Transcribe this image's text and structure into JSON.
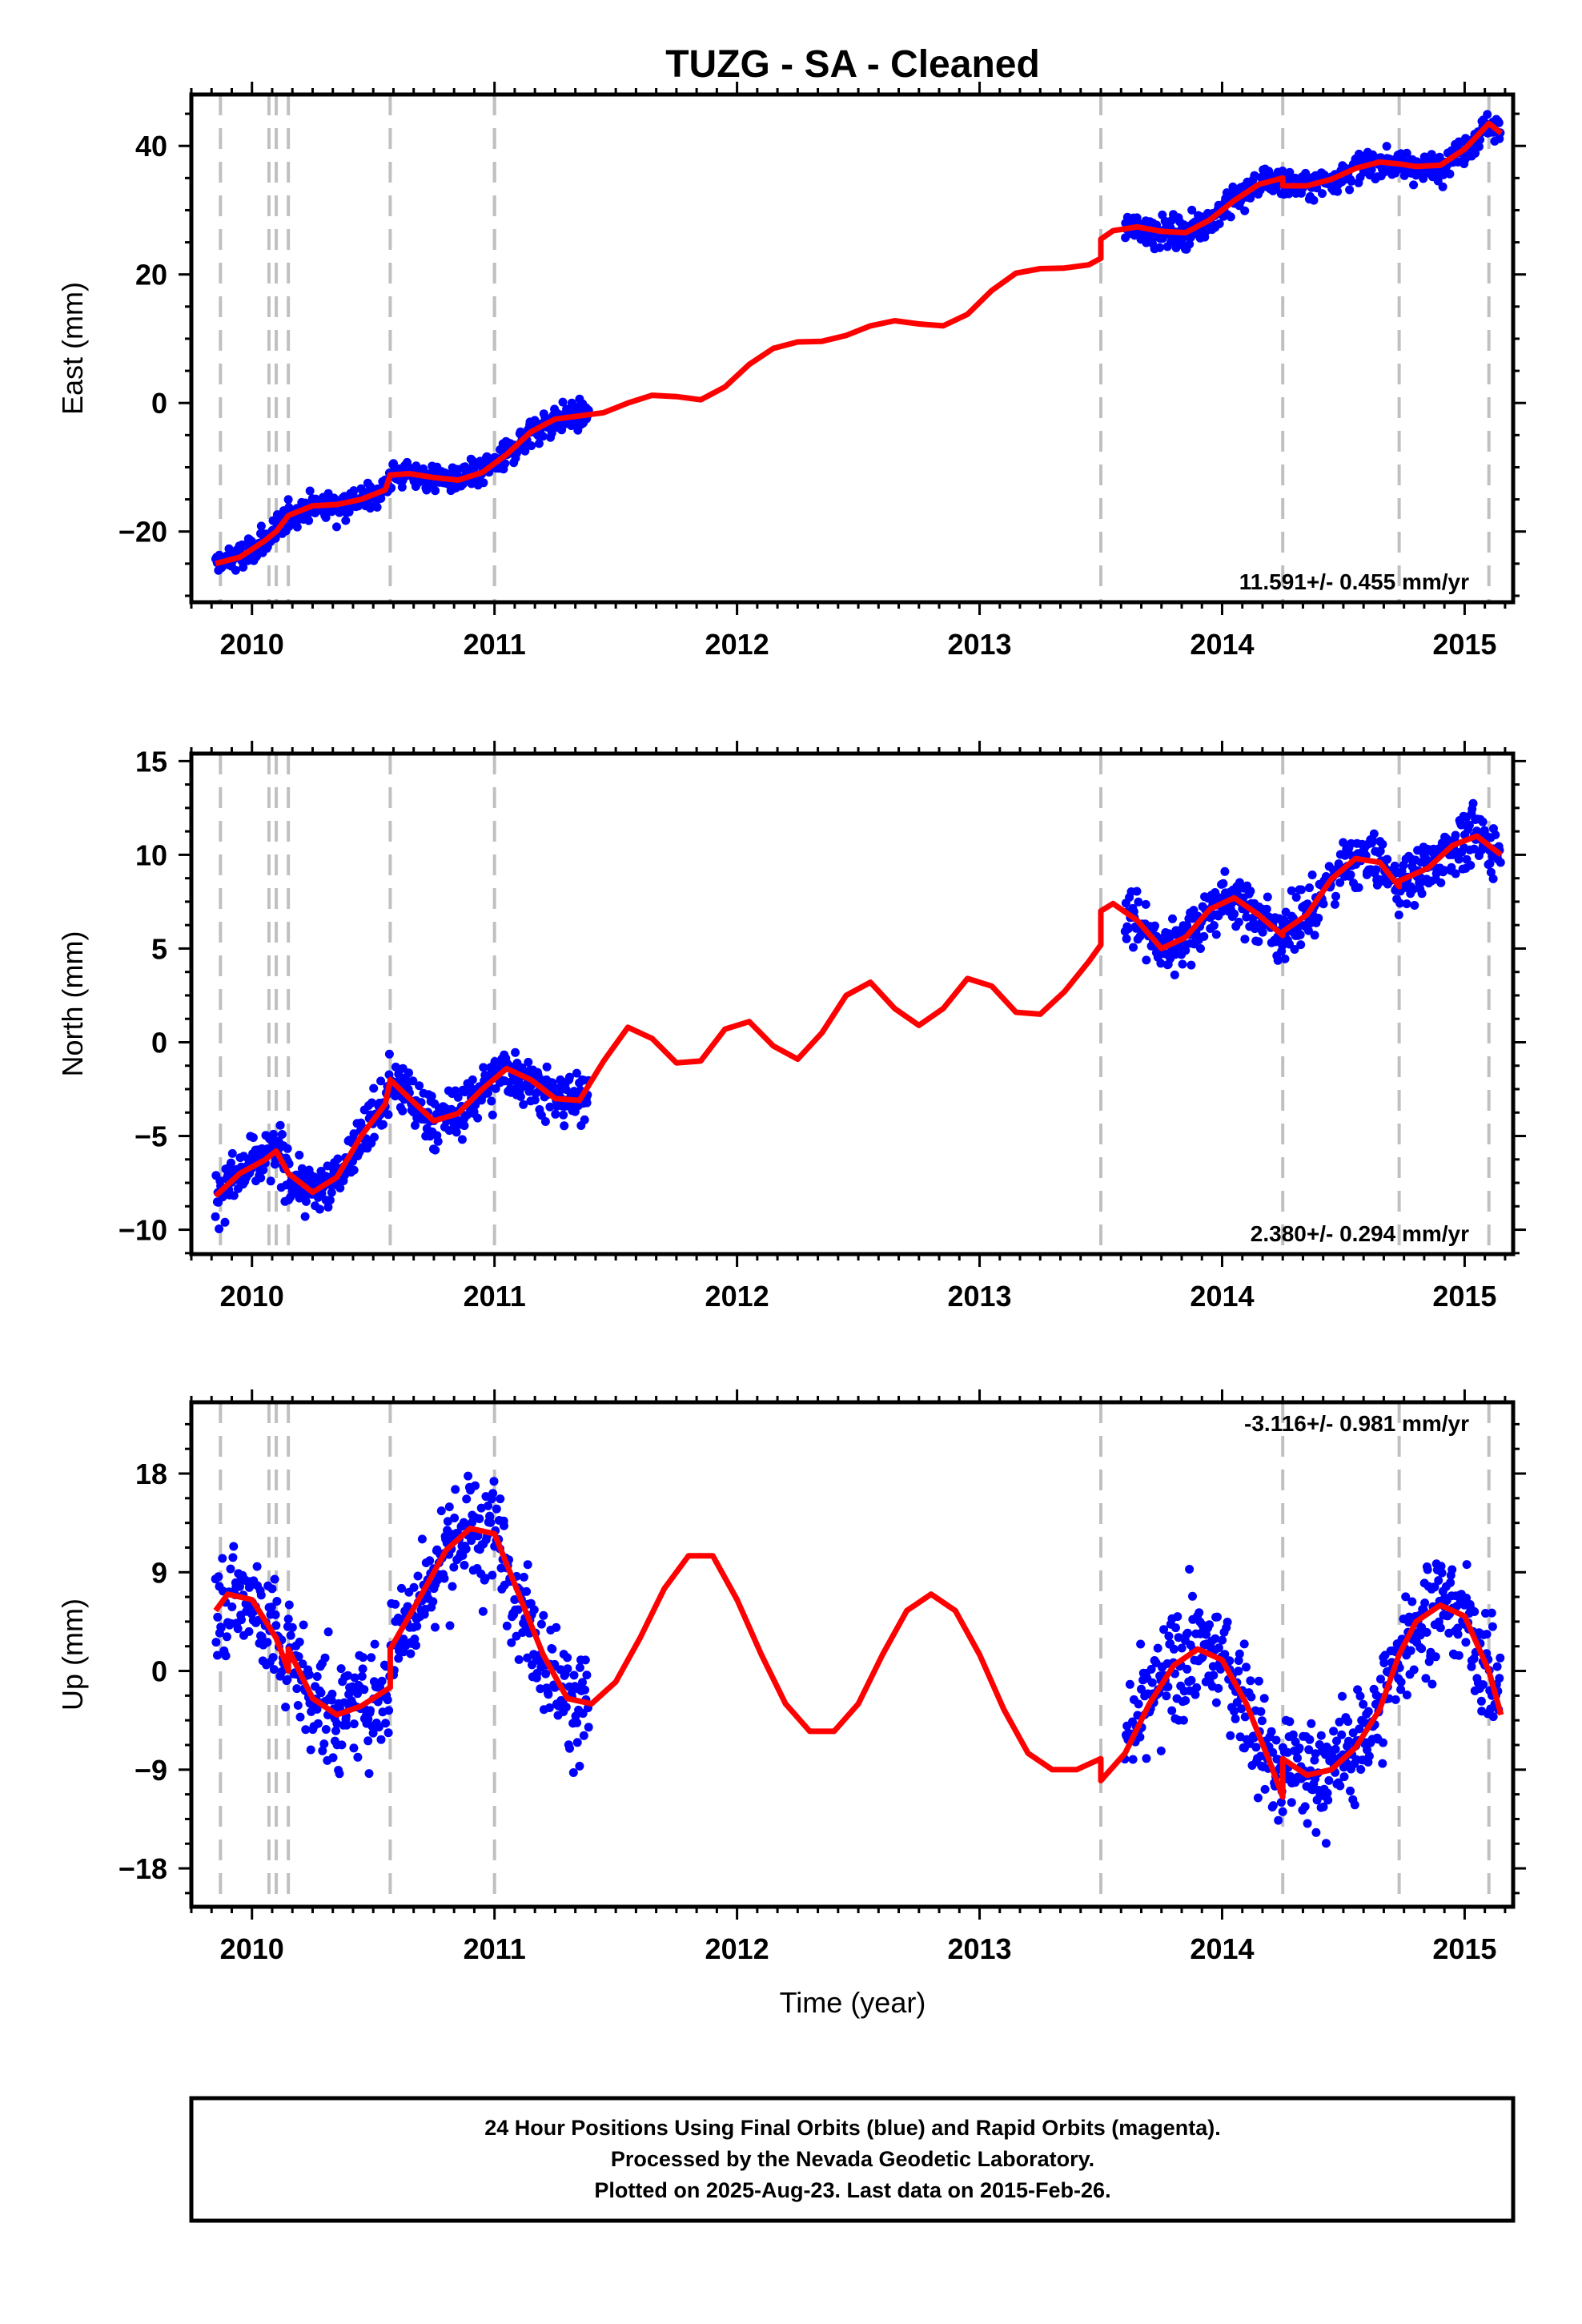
{
  "title": "TUZG  - SA - Cleaned",
  "xlabel": "Time (year)",
  "colors": {
    "observations": "#0000ff",
    "model": "#ff0000",
    "events": "#c0c0c0"
  },
  "footer": {
    "line1": "24 Hour Positions Using Final Orbits (blue) and Rapid Orbits (magenta).",
    "line2": "Processed by the Nevada Geodetic Laboratory.",
    "line3": "Plotted on 2025-Aug-23. Last data on 2015-Feb-26."
  },
  "chart_data": [
    {
      "type": "scatter",
      "component": "east",
      "ylabel": "East (mm)",
      "rate_label": "11.591+/- 0.455 mm/yr",
      "rate_position": "bottom-right",
      "xlim": [
        2009.75,
        2015.2
      ],
      "ylim": [
        -31,
        48
      ],
      "xticks": [
        2010,
        2011,
        2012,
        2013,
        2014,
        2015
      ],
      "yticks": [
        -20,
        0,
        20,
        40
      ],
      "events": [
        2009.87,
        2010.07,
        2010.1,
        2010.15,
        2010.57,
        2011.0,
        2011.0,
        2013.5,
        2014.25,
        2014.73,
        2015.1
      ],
      "model": {
        "x": [
          2009.85,
          2009.95,
          2010.05,
          2010.1,
          2010.15,
          2010.25,
          2010.35,
          2010.45,
          2010.55,
          2010.57,
          2010.65,
          2010.75,
          2010.85,
          2010.95,
          2011.05,
          2011.15,
          2011.25,
          2011.35,
          2011.45,
          2011.55,
          2011.65,
          2011.75,
          2011.85,
          2011.95,
          2012.05,
          2012.15,
          2012.25,
          2012.35,
          2012.45,
          2012.55,
          2012.65,
          2012.75,
          2012.85,
          2012.95,
          2013.05,
          2013.15,
          2013.25,
          2013.35,
          2013.45,
          2013.5,
          2013.5,
          2013.55,
          2013.65,
          2013.75,
          2013.85,
          2013.95,
          2014.05,
          2014.15,
          2014.25,
          2014.25,
          2014.35,
          2014.45,
          2014.55,
          2014.65,
          2014.73,
          2014.8,
          2014.9,
          2015.0,
          2015.05,
          2015.1,
          2015.15
        ],
        "y": [
          -25.0,
          -24.0,
          -21.5,
          -20.0,
          -17.5,
          -16.0,
          -15.8,
          -15.0,
          -13.5,
          -11.2,
          -11.0,
          -11.6,
          -12.0,
          -10.8,
          -8.0,
          -4.5,
          -2.5,
          -2.0,
          -1.5,
          0.0,
          1.2,
          1.0,
          0.5,
          2.5,
          6.0,
          8.5,
          9.5,
          9.6,
          10.5,
          12.0,
          12.8,
          12.3,
          12.0,
          13.8,
          17.5,
          20.2,
          20.9,
          21.0,
          21.5,
          22.5,
          25.5,
          26.8,
          27.4,
          26.7,
          26.5,
          28.5,
          31.5,
          34.0,
          35.0,
          33.8,
          33.8,
          34.8,
          36.5,
          37.5,
          37.2,
          36.8,
          37.0,
          39.5,
          41.5,
          43.5,
          42.0
        ]
      },
      "observation_segments": [
        {
          "start": 2009.85,
          "end": 2011.39,
          "scatter": 1.6
        },
        {
          "start": 2013.6,
          "end": 2015.15,
          "scatter": 1.6
        }
      ]
    },
    {
      "type": "scatter",
      "component": "north",
      "ylabel": "North (mm)",
      "rate_label": "2.380+/- 0.294 mm/yr",
      "rate_position": "bottom-right",
      "xlim": [
        2009.75,
        2015.2
      ],
      "ylim": [
        -11.3,
        15.4
      ],
      "xticks": [
        2010,
        2011,
        2012,
        2013,
        2014,
        2015
      ],
      "yticks": [
        -10,
        -5,
        0,
        5,
        10,
        15
      ],
      "events": [
        2009.87,
        2010.07,
        2010.1,
        2010.15,
        2010.57,
        2011.0,
        2013.5,
        2014.25,
        2014.73,
        2015.1
      ],
      "model": {
        "x": [
          2009.85,
          2009.95,
          2010.05,
          2010.1,
          2010.15,
          2010.25,
          2010.35,
          2010.45,
          2010.55,
          2010.57,
          2010.65,
          2010.75,
          2010.85,
          2010.95,
          2011.05,
          2011.15,
          2011.25,
          2011.35,
          2011.45,
          2011.55,
          2011.65,
          2011.75,
          2011.85,
          2011.95,
          2012.05,
          2012.15,
          2012.25,
          2012.35,
          2012.45,
          2012.55,
          2012.65,
          2012.75,
          2012.85,
          2012.95,
          2013.05,
          2013.15,
          2013.25,
          2013.35,
          2013.45,
          2013.5,
          2013.5,
          2013.55,
          2013.65,
          2013.75,
          2013.85,
          2013.95,
          2014.05,
          2014.15,
          2014.25,
          2014.25,
          2014.35,
          2014.45,
          2014.55,
          2014.65,
          2014.73,
          2014.73,
          2014.85,
          2014.95,
          2015.05,
          2015.15
        ],
        "y": [
          -8.2,
          -7.0,
          -6.3,
          -5.8,
          -7.0,
          -8.0,
          -7.2,
          -5.0,
          -3.3,
          -2.0,
          -3.0,
          -4.2,
          -3.8,
          -2.5,
          -1.4,
          -2.0,
          -3.0,
          -3.1,
          -1.0,
          0.8,
          0.2,
          -1.1,
          -1.0,
          0.7,
          1.1,
          -0.2,
          -0.9,
          0.5,
          2.5,
          3.2,
          1.8,
          0.9,
          1.8,
          3.4,
          3.0,
          1.6,
          1.5,
          2.7,
          4.3,
          5.2,
          7.0,
          7.4,
          6.5,
          5.0,
          5.6,
          7.1,
          7.7,
          6.8,
          5.7,
          5.9,
          6.8,
          8.7,
          9.8,
          9.6,
          8.3,
          8.6,
          9.3,
          10.5,
          11.0,
          10.0
        ]
      },
      "observation_segments": [
        {
          "start": 2009.85,
          "end": 2011.39,
          "scatter": 1.0
        },
        {
          "start": 2013.6,
          "end": 2015.15,
          "scatter": 1.0
        }
      ]
    },
    {
      "type": "scatter",
      "component": "up",
      "ylabel": "Up (mm)",
      "rate_label": "-3.116+/- 0.981 mm/yr",
      "rate_position": "top-right",
      "xlim": [
        2009.75,
        2015.2
      ],
      "ylim": [
        -21.5,
        24.5
      ],
      "xticks": [
        2010,
        2011,
        2012,
        2013,
        2014,
        2015
      ],
      "yticks": [
        -18,
        -9,
        0,
        9,
        18
      ],
      "events": [
        2009.87,
        2010.07,
        2010.1,
        2010.15,
        2010.57,
        2011.0,
        2013.5,
        2014.25,
        2014.73,
        2015.1
      ],
      "model": {
        "x": [
          2009.85,
          2009.9,
          2010.0,
          2010.1,
          2010.15,
          2010.15,
          2010.25,
          2010.35,
          2010.45,
          2010.57,
          2010.57,
          2010.7,
          2010.8,
          2010.9,
          2011.0,
          2011.1,
          2011.2,
          2011.3,
          2011.4,
          2011.5,
          2011.6,
          2011.7,
          2011.8,
          2011.9,
          2012.0,
          2012.1,
          2012.2,
          2012.3,
          2012.4,
          2012.5,
          2012.6,
          2012.7,
          2012.8,
          2012.9,
          2013.0,
          2013.1,
          2013.2,
          2013.3,
          2013.4,
          2013.5,
          2013.5,
          2013.6,
          2013.7,
          2013.8,
          2013.9,
          2014.0,
          2014.1,
          2014.2,
          2014.25,
          2014.25,
          2014.35,
          2014.45,
          2014.55,
          2014.65,
          2014.73,
          2014.8,
          2014.9,
          2015.0,
          2015.1,
          2015.15
        ],
        "y": [
          5.5,
          7.0,
          6.5,
          3.0,
          0.0,
          2.0,
          -2.5,
          -4.0,
          -3.2,
          -1.5,
          2.0,
          7.0,
          11.0,
          13.0,
          12.5,
          7.0,
          1.5,
          -2.5,
          -3.0,
          -1.0,
          3.0,
          7.5,
          10.5,
          10.5,
          6.5,
          1.5,
          -3.0,
          -5.5,
          -5.5,
          -3.0,
          1.5,
          5.5,
          7.0,
          5.5,
          1.5,
          -3.5,
          -7.5,
          -9.0,
          -9.0,
          -8.0,
          -10.0,
          -7.5,
          -3.0,
          0.5,
          2.0,
          1.0,
          -3.0,
          -8.5,
          -11.5,
          -8.0,
          -9.5,
          -9.0,
          -7.0,
          -3.5,
          1.5,
          4.5,
          6.0,
          5.0,
          0.0,
          -4.0
        ]
      },
      "observation_segments": [
        {
          "start": 2009.85,
          "end": 2011.39,
          "scatter": 3.5
        },
        {
          "start": 2013.6,
          "end": 2015.15,
          "scatter": 3.5
        }
      ]
    }
  ]
}
